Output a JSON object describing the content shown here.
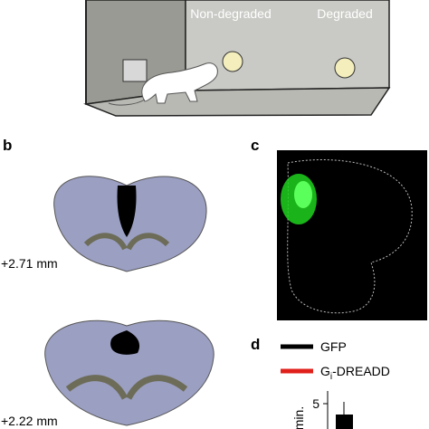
{
  "panel_a": {
    "labels": [
      "Non-degraded",
      "Degraded"
    ]
  },
  "panel_b": {
    "label": "b",
    "sections": [
      "+2.71 mm",
      "+2.22 mm"
    ]
  },
  "panel_c": {
    "label": "c"
  },
  "panel_d": {
    "label": "d",
    "legend": [
      {
        "name": "GFP",
        "color": "#000000"
      },
      {
        "name": "G",
        "subscript": "i",
        "suffix": "-DREADD",
        "color": "#e0201b"
      }
    ],
    "ytick": "5",
    "ylabel": "min."
  }
}
